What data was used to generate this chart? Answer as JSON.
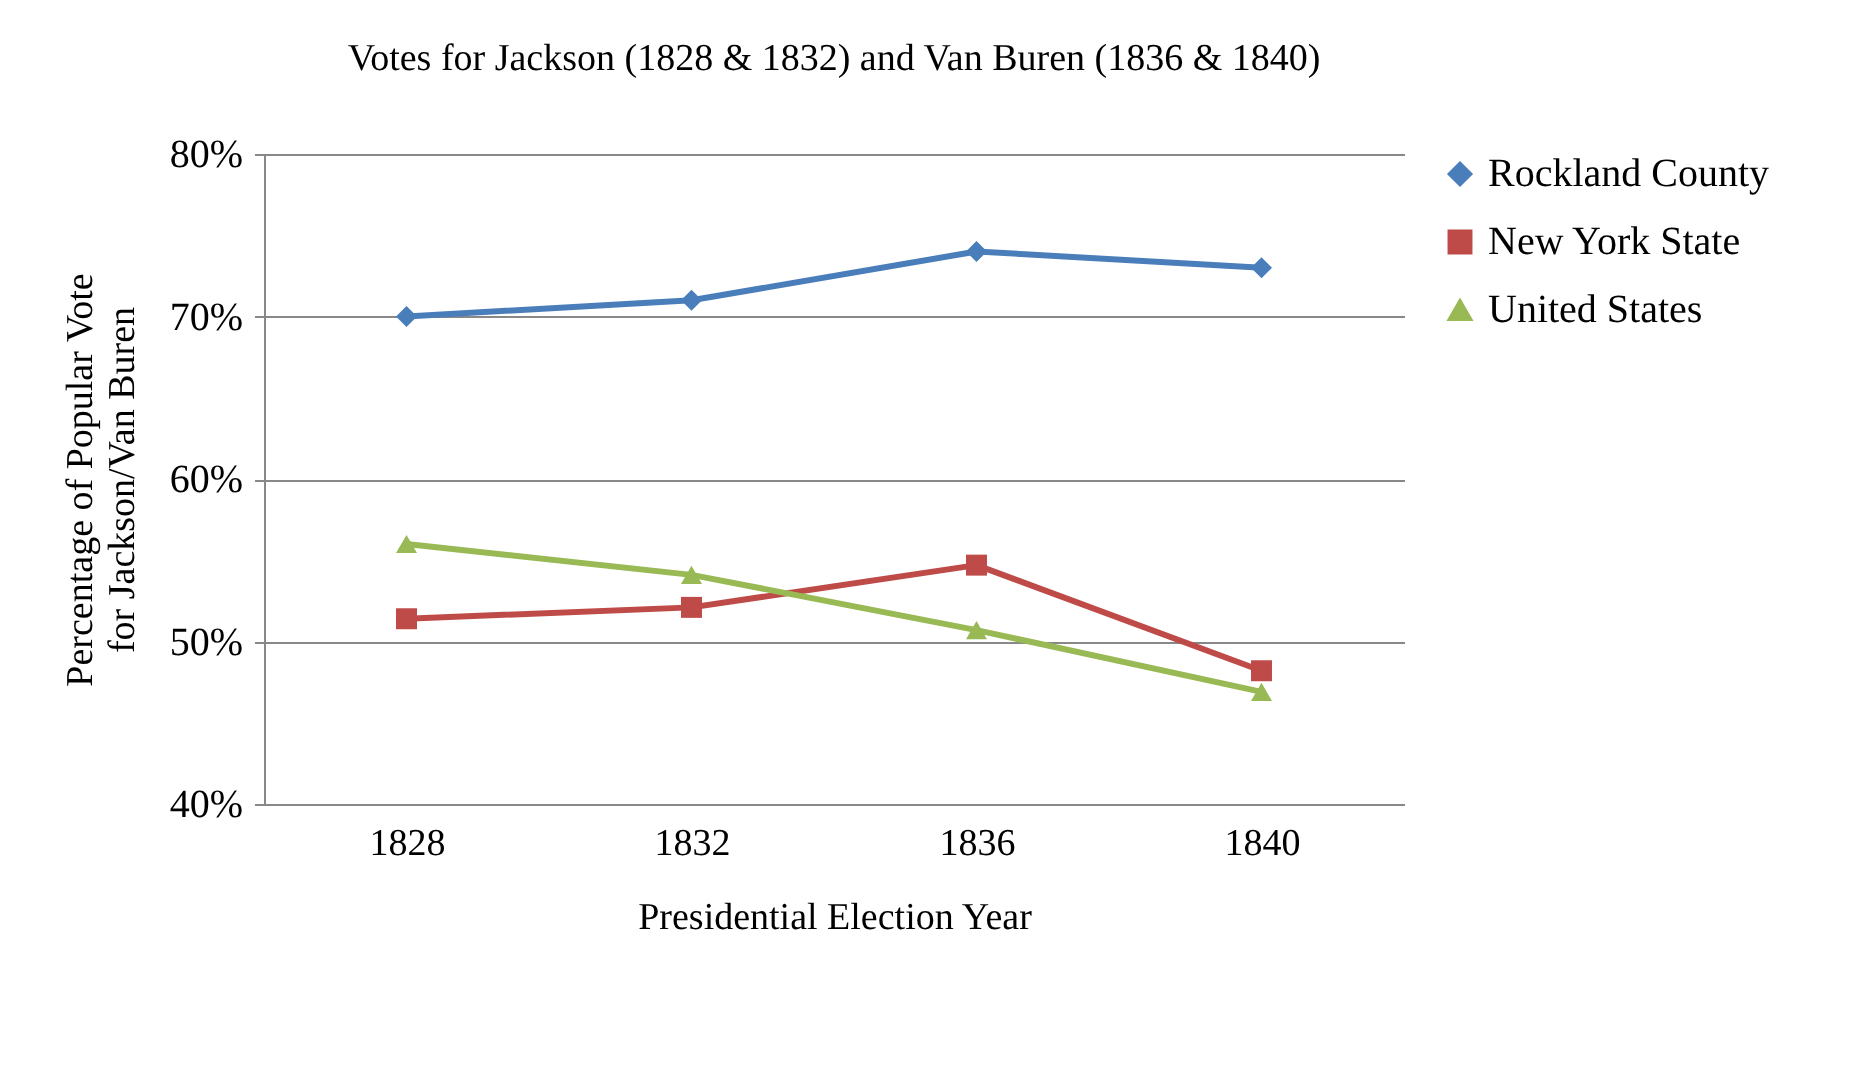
{
  "chart_data": {
    "type": "line",
    "title": "Votes for Jackson (1828  & 1832)  and Van Buren (1836  & 1840)",
    "xlabel": "Presidential Election Year",
    "ylabel": "Percentage of Popular Vote for Jackson/Van Buren",
    "categories": [
      "1828",
      "1832",
      "1836",
      "1840"
    ],
    "series": [
      {
        "name": "Rockland County",
        "color": "#4a7ebb",
        "marker": "diamond",
        "values": [
          70,
          71,
          74,
          73
        ]
      },
      {
        "name": "New York State",
        "color": "#be4b48",
        "marker": "square",
        "values": [
          51.4,
          52.1,
          54.7,
          48.2
        ]
      },
      {
        "name": "United States",
        "color": "#98b954",
        "marker": "triangle",
        "values": [
          56.0,
          54.1,
          50.7,
          46.9
        ]
      }
    ],
    "ylim": [
      40,
      80
    ],
    "yticks": [
      {
        "value": 40,
        "label": "40%"
      },
      {
        "value": 50,
        "label": "50%"
      },
      {
        "value": 60,
        "label": "60%"
      },
      {
        "value": 70,
        "label": "70%"
      },
      {
        "value": 80,
        "label": "80%"
      }
    ],
    "grid": "y",
    "legend": "right"
  }
}
